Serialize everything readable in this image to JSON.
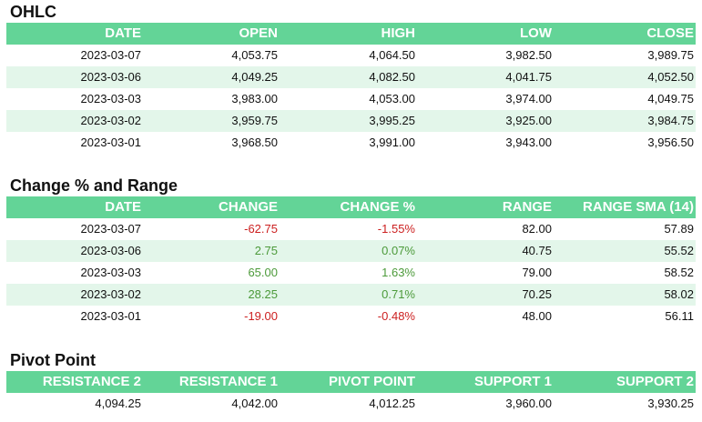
{
  "ohlc": {
    "title": "OHLC",
    "columns": [
      "DATE",
      "OPEN",
      "HIGH",
      "LOW",
      "CLOSE"
    ],
    "rows": [
      [
        "2023-03-07",
        "4,053.75",
        "4,064.50",
        "3,982.50",
        "3,989.75"
      ],
      [
        "2023-03-06",
        "4,049.25",
        "4,082.50",
        "4,041.75",
        "4,052.50"
      ],
      [
        "2023-03-03",
        "3,983.00",
        "4,053.00",
        "3,974.00",
        "4,049.75"
      ],
      [
        "2023-03-02",
        "3,959.75",
        "3,995.25",
        "3,925.00",
        "3,984.75"
      ],
      [
        "2023-03-01",
        "3,968.50",
        "3,991.00",
        "3,943.00",
        "3,956.50"
      ]
    ]
  },
  "change_range": {
    "title": "Change % and Range",
    "columns": [
      "DATE",
      "CHANGE",
      "CHANGE %",
      "RANGE",
      "RANGE SMA (14)"
    ],
    "rows": [
      [
        "2023-03-07",
        "-62.75",
        "-1.55%",
        "82.00",
        "57.89"
      ],
      [
        "2023-03-06",
        "2.75",
        "0.07%",
        "40.75",
        "55.52"
      ],
      [
        "2023-03-03",
        "65.00",
        "1.63%",
        "79.00",
        "58.52"
      ],
      [
        "2023-03-02",
        "28.25",
        "0.71%",
        "70.25",
        "58.02"
      ],
      [
        "2023-03-01",
        "-19.00",
        "-0.48%",
        "48.00",
        "56.11"
      ]
    ],
    "change_direction": [
      "negative",
      "positive",
      "positive",
      "positive",
      "negative"
    ]
  },
  "pivot": {
    "title": "Pivot Point",
    "columns": [
      "RESISTANCE 2",
      "RESISTANCE 1",
      "PIVOT POINT",
      "SUPPORT 1",
      "SUPPORT 2"
    ],
    "rows": [
      [
        "4,094.25",
        "4,042.00",
        "4,012.25",
        "3,960.00",
        "3,930.25"
      ]
    ]
  },
  "colors": {
    "header_bg": "#63d497",
    "stripe_bg": "#e3f6ea",
    "negative": "#cc1f1f",
    "positive": "#4c9a3a"
  }
}
